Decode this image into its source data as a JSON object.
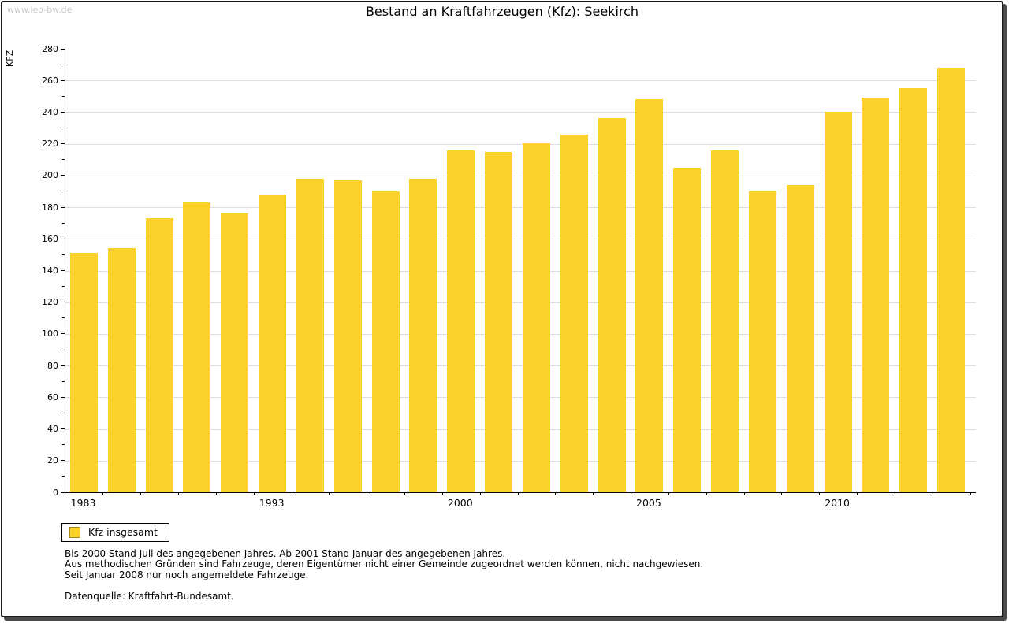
{
  "watermark": "www.leo-bw.de",
  "title": "Bestand an Kraftfahrzeugen (Kfz): Seekirch",
  "y_axis_label": "KFZ",
  "legend": {
    "label": "Kfz insgesamt"
  },
  "footnotes": [
    "Bis 2000 Stand Juli des angegebenen Jahres. Ab 2001 Stand Januar des angegebenen Jahres.",
    "Aus methodischen Gründen sind Fahrzeuge, deren Eigentümer nicht einer Gemeinde zugeordnet werden können, nicht nachgewiesen.",
    "Seit Januar 2008 nur noch angemeldete Fahrzeuge."
  ],
  "source": "Datenquelle: Kraftfahrt-Bundesamt.",
  "colors": {
    "bar": "#fbd22c",
    "bar_border": "#a5891e",
    "grid": "#dddddd",
    "watermark": "#c9c9c9",
    "frame_shadow": "#4b4b4b"
  },
  "chart_data": {
    "type": "bar",
    "title": "Bestand an Kraftfahrzeugen (Kfz): Seekirch",
    "xlabel": "",
    "ylabel": "KFZ",
    "ylim": [
      0,
      280
    ],
    "y_tick_step": 20,
    "y_minor_tick_step": 10,
    "grid": "horizontal-major",
    "legend_position": "bottom-left",
    "series_name": "Kfz insgesamt",
    "bar_count": 24,
    "values": [
      151,
      154,
      173,
      183,
      176,
      188,
      198,
      197,
      190,
      198,
      216,
      215,
      221,
      226,
      236,
      248,
      205,
      216,
      190,
      194,
      240,
      249,
      255,
      268
    ],
    "x_tick_labels": [
      {
        "label": "1983",
        "bar_index": 0
      },
      {
        "label": "1993",
        "bar_index": 5
      },
      {
        "label": "2000",
        "bar_index": 10
      },
      {
        "label": "2005",
        "bar_index": 15
      },
      {
        "label": "2010",
        "bar_index": 20
      }
    ]
  }
}
